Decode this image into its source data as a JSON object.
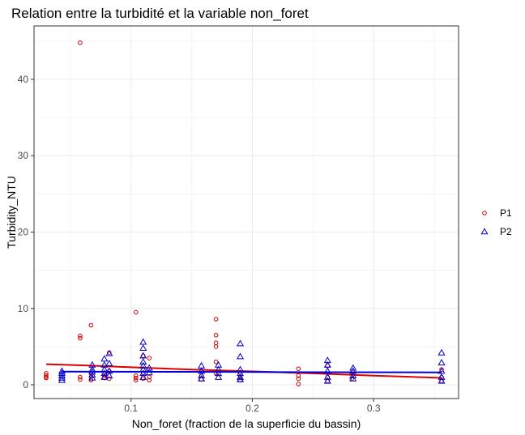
{
  "chart_data": {
    "type": "scatter",
    "title": "Relation entre la turbidité et la variable non_foret",
    "xlabel": "Non_foret (fraction de la superficie du bassin)",
    "ylabel": "Turbidity_NTU",
    "xlim": [
      0.02,
      0.37
    ],
    "ylim": [
      -1.8,
      47.0
    ],
    "x_ticks": [
      0.1,
      0.2,
      0.3
    ],
    "x_tick_labels": [
      "0.1",
      "0.2",
      "0.3"
    ],
    "y_ticks": [
      0,
      10,
      20,
      30,
      40
    ],
    "y_tick_labels": [
      "0",
      "10",
      "20",
      "30",
      "40"
    ],
    "grid": true,
    "legend": {
      "position": "right"
    },
    "series": [
      {
        "name": "P1",
        "marker": "circle",
        "color": "#cc0000",
        "points": [
          [
            0.03,
            1.5
          ],
          [
            0.03,
            1.2
          ],
          [
            0.03,
            1.0
          ],
          [
            0.03,
            0.9
          ],
          [
            0.058,
            44.8
          ],
          [
            0.058,
            6.4
          ],
          [
            0.058,
            6.1
          ],
          [
            0.058,
            1.0
          ],
          [
            0.058,
            0.7
          ],
          [
            0.067,
            7.8
          ],
          [
            0.067,
            1.5
          ],
          [
            0.067,
            1.0
          ],
          [
            0.067,
            0.6
          ],
          [
            0.078,
            1.2
          ],
          [
            0.078,
            0.9
          ],
          [
            0.082,
            4.2
          ],
          [
            0.082,
            1.8
          ],
          [
            0.082,
            0.8
          ],
          [
            0.104,
            9.5
          ],
          [
            0.104,
            1.2
          ],
          [
            0.104,
            0.9
          ],
          [
            0.104,
            0.6
          ],
          [
            0.11,
            3.8
          ],
          [
            0.11,
            1.5
          ],
          [
            0.11,
            0.8
          ],
          [
            0.115,
            3.5
          ],
          [
            0.115,
            1.0
          ],
          [
            0.115,
            0.6
          ],
          [
            0.158,
            1.2
          ],
          [
            0.158,
            0.7
          ],
          [
            0.17,
            8.6
          ],
          [
            0.17,
            6.5
          ],
          [
            0.17,
            5.5
          ],
          [
            0.17,
            5.0
          ],
          [
            0.17,
            3.0
          ],
          [
            0.17,
            1.5
          ],
          [
            0.19,
            1.6
          ],
          [
            0.19,
            1.0
          ],
          [
            0.19,
            0.6
          ],
          [
            0.238,
            2.1
          ],
          [
            0.238,
            1.2
          ],
          [
            0.238,
            0.8
          ],
          [
            0.238,
            0.1
          ],
          [
            0.262,
            2.5
          ],
          [
            0.262,
            1.0
          ],
          [
            0.262,
            0.5
          ],
          [
            0.282,
            1.5
          ],
          [
            0.282,
            0.8
          ],
          [
            0.356,
            2.0
          ],
          [
            0.356,
            1.0
          ],
          [
            0.356,
            0.5
          ]
        ]
      },
      {
        "name": "P2",
        "marker": "triangle",
        "color": "#0000cc",
        "points": [
          [
            0.043,
            1.8
          ],
          [
            0.043,
            1.5
          ],
          [
            0.043,
            1.2
          ],
          [
            0.043,
            0.9
          ],
          [
            0.043,
            0.6
          ],
          [
            0.068,
            2.6
          ],
          [
            0.068,
            2.0
          ],
          [
            0.068,
            1.7
          ],
          [
            0.068,
            1.3
          ],
          [
            0.068,
            0.9
          ],
          [
            0.078,
            3.4
          ],
          [
            0.078,
            2.6
          ],
          [
            0.078,
            2.0
          ],
          [
            0.078,
            1.5
          ],
          [
            0.078,
            1.0
          ],
          [
            0.082,
            4.1
          ],
          [
            0.082,
            2.8
          ],
          [
            0.082,
            1.8
          ],
          [
            0.082,
            1.2
          ],
          [
            0.11,
            5.6
          ],
          [
            0.11,
            4.8
          ],
          [
            0.11,
            3.8
          ],
          [
            0.11,
            3.0
          ],
          [
            0.11,
            2.5
          ],
          [
            0.11,
            2.0
          ],
          [
            0.11,
            1.5
          ],
          [
            0.11,
            1.0
          ],
          [
            0.115,
            2.2
          ],
          [
            0.115,
            1.6
          ],
          [
            0.158,
            2.5
          ],
          [
            0.158,
            1.8
          ],
          [
            0.158,
            1.2
          ],
          [
            0.158,
            0.8
          ],
          [
            0.172,
            2.6
          ],
          [
            0.172,
            2.0
          ],
          [
            0.172,
            1.5
          ],
          [
            0.172,
            1.0
          ],
          [
            0.19,
            5.4
          ],
          [
            0.19,
            3.7
          ],
          [
            0.19,
            2.0
          ],
          [
            0.19,
            1.5
          ],
          [
            0.19,
            1.0
          ],
          [
            0.19,
            0.7
          ],
          [
            0.262,
            3.2
          ],
          [
            0.262,
            2.6
          ],
          [
            0.262,
            1.8
          ],
          [
            0.262,
            1.0
          ],
          [
            0.262,
            0.5
          ],
          [
            0.283,
            2.2
          ],
          [
            0.283,
            1.8
          ],
          [
            0.283,
            1.2
          ],
          [
            0.283,
            0.8
          ],
          [
            0.356,
            4.2
          ],
          [
            0.356,
            2.9
          ],
          [
            0.356,
            1.8
          ],
          [
            0.356,
            1.0
          ],
          [
            0.356,
            0.5
          ]
        ]
      }
    ],
    "smooth_lines": [
      {
        "series": "P1",
        "color": "#dd0000",
        "points": [
          [
            0.03,
            2.7
          ],
          [
            0.06,
            2.55
          ],
          [
            0.1,
            2.3
          ],
          [
            0.15,
            2.0
          ],
          [
            0.2,
            1.75
          ],
          [
            0.25,
            1.5
          ],
          [
            0.3,
            1.2
          ],
          [
            0.356,
            0.9
          ]
        ]
      },
      {
        "series": "P2",
        "color": "#0000dd",
        "points": [
          [
            0.043,
            1.72
          ],
          [
            0.15,
            1.7
          ],
          [
            0.25,
            1.65
          ],
          [
            0.356,
            1.63
          ]
        ]
      }
    ]
  }
}
